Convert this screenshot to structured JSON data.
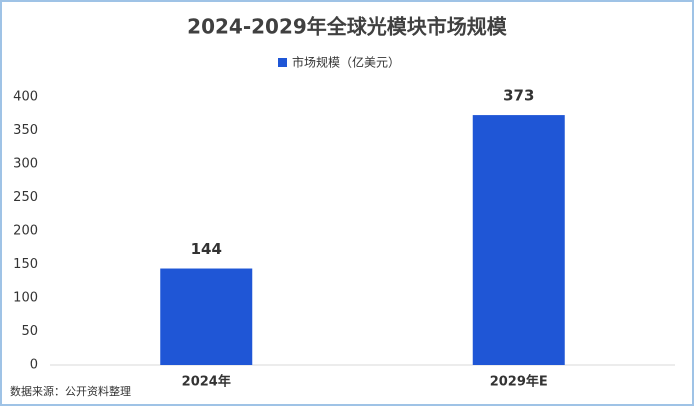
{
  "chart_data": {
    "type": "bar",
    "title": "2024-2029年全球光模块市场规模",
    "categories": [
      "2024年",
      "2029年E"
    ],
    "series": [
      {
        "name": "市场规模（亿美元）",
        "color": "#1f56d6",
        "values": [
          144,
          373
        ]
      }
    ],
    "ylim": [
      0,
      400
    ],
    "yticks": [
      0,
      50,
      100,
      150,
      200,
      250,
      300,
      350,
      400
    ],
    "grid": false,
    "source": "数据来源：公开资料整理"
  }
}
